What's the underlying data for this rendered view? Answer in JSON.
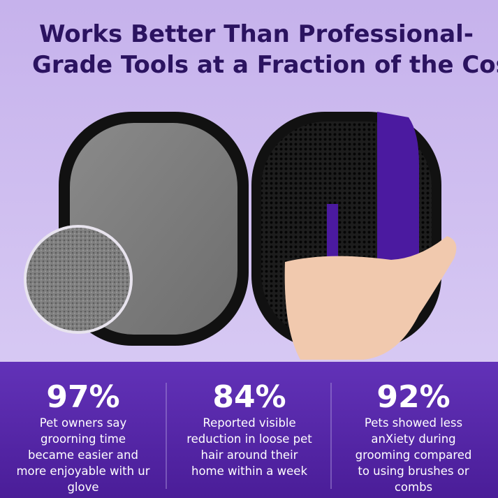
{
  "header": {
    "title_lines": [
      "Works Better Than Professional-",
      "Grade Tools at a Fraction of the Cost"
    ]
  },
  "stats": [
    {
      "figure": "97%",
      "lines": [
        "Pet owners say",
        "groorning time",
        "became easier and",
        "more enjoyable with ur",
        "glove"
      ]
    },
    {
      "figure": "84%",
      "lines": [
        "Reported visible",
        "reduction in loose pet",
        "hair around their",
        "home within a week"
      ]
    },
    {
      "figure": "92%",
      "lines": [
        "Pets showed less",
        "anXiety during",
        "grooming compared",
        "to using brushes or",
        "combs"
      ]
    }
  ]
}
